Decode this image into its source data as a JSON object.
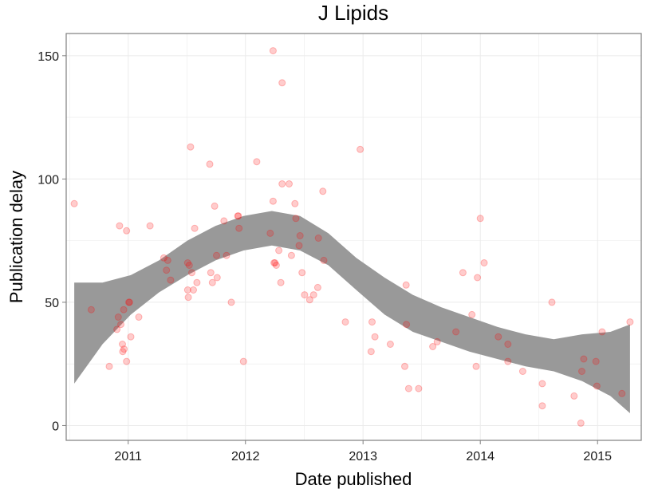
{
  "chart_data": {
    "type": "scatter",
    "title": "J Lipids",
    "xlabel": "Date published",
    "ylabel": "Publication delay",
    "xlim": [
      "2010-06-22",
      "2015-05-17"
    ],
    "ylim": [
      -6,
      159
    ],
    "x_ticks": [
      {
        "date": "2011-01-01",
        "label": "2011"
      },
      {
        "date": "2012-01-01",
        "label": "2012"
      },
      {
        "date": "2013-01-01",
        "label": "2013"
      },
      {
        "date": "2014-01-01",
        "label": "2014"
      },
      {
        "date": "2015-01-01",
        "label": "2015"
      }
    ],
    "y_ticks": [
      0,
      50,
      100,
      150
    ],
    "grid": true,
    "points": [
      {
        "x": "2010-07-17",
        "y": 90
      },
      {
        "x": "2010-09-08",
        "y": 47
      },
      {
        "x": "2010-11-03",
        "y": 24
      },
      {
        "x": "2010-11-27",
        "y": 39
      },
      {
        "x": "2010-12-01",
        "y": 44
      },
      {
        "x": "2010-12-05",
        "y": 81
      },
      {
        "x": "2010-12-09",
        "y": 41
      },
      {
        "x": "2010-12-14",
        "y": 33
      },
      {
        "x": "2010-12-15",
        "y": 30
      },
      {
        "x": "2010-12-18",
        "y": 47
      },
      {
        "x": "2010-12-19",
        "y": 31
      },
      {
        "x": "2010-12-27",
        "y": 79
      },
      {
        "x": "2010-12-27",
        "y": 26
      },
      {
        "x": "2011-01-03",
        "y": 50
      },
      {
        "x": "2011-01-05",
        "y": 50
      },
      {
        "x": "2011-01-09",
        "y": 36
      },
      {
        "x": "2011-02-03",
        "y": 44
      },
      {
        "x": "2011-03-10",
        "y": 81
      },
      {
        "x": "2011-04-22",
        "y": 68
      },
      {
        "x": "2011-04-30",
        "y": 63
      },
      {
        "x": "2011-05-04",
        "y": 67
      },
      {
        "x": "2011-05-13",
        "y": 59
      },
      {
        "x": "2011-07-05",
        "y": 55
      },
      {
        "x": "2011-07-05",
        "y": 66
      },
      {
        "x": "2011-07-07",
        "y": 52
      },
      {
        "x": "2011-07-10",
        "y": 65
      },
      {
        "x": "2011-07-14",
        "y": 113
      },
      {
        "x": "2011-07-18",
        "y": 62
      },
      {
        "x": "2011-07-23",
        "y": 55
      },
      {
        "x": "2011-07-27",
        "y": 80
      },
      {
        "x": "2011-08-03",
        "y": 58
      },
      {
        "x": "2011-09-12",
        "y": 106
      },
      {
        "x": "2011-09-15",
        "y": 62
      },
      {
        "x": "2011-09-20",
        "y": 58
      },
      {
        "x": "2011-09-27",
        "y": 89
      },
      {
        "x": "2011-10-03",
        "y": 69
      },
      {
        "x": "2011-10-05",
        "y": 60
      },
      {
        "x": "2011-10-26",
        "y": 83
      },
      {
        "x": "2011-11-03",
        "y": 69
      },
      {
        "x": "2011-11-18",
        "y": 50
      },
      {
        "x": "2011-12-08",
        "y": 85
      },
      {
        "x": "2011-12-10",
        "y": 85
      },
      {
        "x": "2011-12-12",
        "y": 80
      },
      {
        "x": "2011-12-26",
        "y": 26
      },
      {
        "x": "2012-02-05",
        "y": 107
      },
      {
        "x": "2012-03-18",
        "y": 78
      },
      {
        "x": "2012-03-27",
        "y": 152
      },
      {
        "x": "2012-03-27",
        "y": 91
      },
      {
        "x": "2012-03-30",
        "y": 66
      },
      {
        "x": "2012-04-02",
        "y": 66
      },
      {
        "x": "2012-04-06",
        "y": 65
      },
      {
        "x": "2012-04-14",
        "y": 71
      },
      {
        "x": "2012-04-20",
        "y": 58
      },
      {
        "x": "2012-04-24",
        "y": 98
      },
      {
        "x": "2012-04-24",
        "y": 139
      },
      {
        "x": "2012-05-16",
        "y": 98
      },
      {
        "x": "2012-05-23",
        "y": 69
      },
      {
        "x": "2012-06-03",
        "y": 90
      },
      {
        "x": "2012-06-06",
        "y": 84
      },
      {
        "x": "2012-06-16",
        "y": 73
      },
      {
        "x": "2012-06-19",
        "y": 77
      },
      {
        "x": "2012-06-25",
        "y": 62
      },
      {
        "x": "2012-07-03",
        "y": 53
      },
      {
        "x": "2012-07-19",
        "y": 51
      },
      {
        "x": "2012-07-31",
        "y": 53
      },
      {
        "x": "2012-08-13",
        "y": 56
      },
      {
        "x": "2012-08-15",
        "y": 76
      },
      {
        "x": "2012-08-29",
        "y": 95
      },
      {
        "x": "2012-09-01",
        "y": 67
      },
      {
        "x": "2012-11-07",
        "y": 42
      },
      {
        "x": "2012-12-23",
        "y": 112
      },
      {
        "x": "2013-01-26",
        "y": 30
      },
      {
        "x": "2013-01-29",
        "y": 42
      },
      {
        "x": "2013-02-07",
        "y": 36
      },
      {
        "x": "2013-03-27",
        "y": 33
      },
      {
        "x": "2013-05-11",
        "y": 24
      },
      {
        "x": "2013-05-15",
        "y": 57
      },
      {
        "x": "2013-05-16",
        "y": 41
      },
      {
        "x": "2013-05-23",
        "y": 15
      },
      {
        "x": "2013-06-23",
        "y": 15
      },
      {
        "x": "2013-08-06",
        "y": 32
      },
      {
        "x": "2013-08-20",
        "y": 34
      },
      {
        "x": "2013-10-17",
        "y": 38
      },
      {
        "x": "2013-11-08",
        "y": 62
      },
      {
        "x": "2013-12-06",
        "y": 45
      },
      {
        "x": "2013-12-19",
        "y": 24
      },
      {
        "x": "2013-12-23",
        "y": 60
      },
      {
        "x": "2014-01-01",
        "y": 84
      },
      {
        "x": "2014-01-13",
        "y": 66
      },
      {
        "x": "2014-02-26",
        "y": 36
      },
      {
        "x": "2014-03-28",
        "y": 33
      },
      {
        "x": "2014-03-28",
        "y": 26
      },
      {
        "x": "2014-05-13",
        "y": 22
      },
      {
        "x": "2014-07-13",
        "y": 8
      },
      {
        "x": "2014-07-13",
        "y": 17
      },
      {
        "x": "2014-08-12",
        "y": 50
      },
      {
        "x": "2014-10-20",
        "y": 12
      },
      {
        "x": "2014-11-10",
        "y": 1
      },
      {
        "x": "2014-11-13",
        "y": 22
      },
      {
        "x": "2014-11-19",
        "y": 27
      },
      {
        "x": "2014-12-27",
        "y": 26
      },
      {
        "x": "2014-12-30",
        "y": 16
      },
      {
        "x": "2015-01-15",
        "y": 38
      },
      {
        "x": "2015-03-18",
        "y": 13
      },
      {
        "x": "2015-04-12",
        "y": 42
      }
    ],
    "smooth_band": [
      {
        "x": "2010-07-17",
        "low": 17,
        "high": 58
      },
      {
        "x": "2010-10-13",
        "low": 33,
        "high": 58
      },
      {
        "x": "2011-01-09",
        "low": 45,
        "high": 61
      },
      {
        "x": "2011-04-07",
        "low": 54,
        "high": 67
      },
      {
        "x": "2011-07-04",
        "low": 61,
        "high": 75
      },
      {
        "x": "2011-09-30",
        "low": 67,
        "high": 81
      },
      {
        "x": "2011-12-26",
        "low": 71,
        "high": 85
      },
      {
        "x": "2012-03-23",
        "low": 73,
        "high": 87
      },
      {
        "x": "2012-06-19",
        "low": 71,
        "high": 85
      },
      {
        "x": "2012-09-15",
        "low": 65,
        "high": 78
      },
      {
        "x": "2012-12-11",
        "low": 55,
        "high": 68
      },
      {
        "x": "2013-03-09",
        "low": 45,
        "high": 60
      },
      {
        "x": "2013-06-05",
        "low": 38,
        "high": 53
      },
      {
        "x": "2013-09-01",
        "low": 34,
        "high": 48
      },
      {
        "x": "2013-11-28",
        "low": 30,
        "high": 44
      },
      {
        "x": "2014-02-23",
        "low": 27,
        "high": 40
      },
      {
        "x": "2014-05-22",
        "low": 24,
        "high": 37
      },
      {
        "x": "2014-08-18",
        "low": 22,
        "high": 35
      },
      {
        "x": "2014-11-14",
        "low": 18,
        "high": 37
      },
      {
        "x": "2015-02-10",
        "low": 12,
        "high": 38
      },
      {
        "x": "2015-04-12",
        "low": 5,
        "high": 41
      }
    ],
    "colors": {
      "point_fill": "#ff0000",
      "band_fill": "#999999",
      "panel_border": "#7f7f7f",
      "grid": "#ebebeb"
    }
  }
}
